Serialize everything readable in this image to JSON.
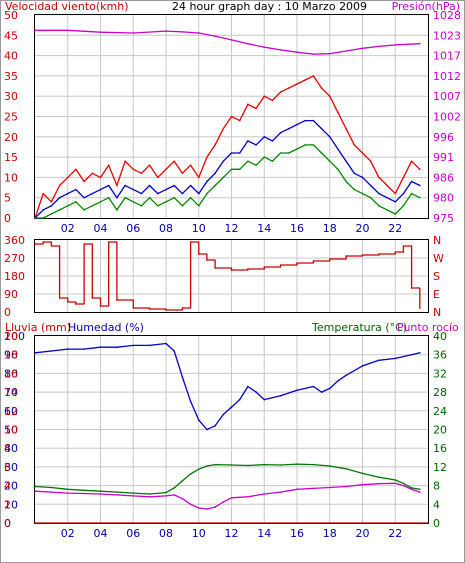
{
  "chart_data": [
    {
      "type": "line",
      "title": "24 hour graph day : 10 Marzo 2009",
      "left_label": "Velocidad viento(kmh)",
      "right_label": "Presión(hPa)",
      "x_ticks": [
        "02",
        "04",
        "06",
        "08",
        "10",
        "12",
        "14",
        "16",
        "18",
        "20",
        "22"
      ],
      "x_tick_hours": [
        2,
        4,
        6,
        8,
        10,
        12,
        14,
        16,
        18,
        20,
        22
      ],
      "x_range_hours": [
        0,
        24
      ],
      "y_left_ticks": [
        "0",
        "5",
        "10",
        "15",
        "20",
        "25",
        "30",
        "35",
        "40",
        "45",
        "50"
      ],
      "y_left_range": [
        0,
        50
      ],
      "y_right_ticks": [
        "975",
        "980",
        "986",
        "991",
        "996",
        "1002",
        "1007",
        "1012",
        "1017",
        "1023",
        "1028"
      ],
      "y_right_range": [
        975,
        1028
      ],
      "grid": true,
      "colors": {
        "gust": "#ee0000",
        "average": "#0000cc",
        "minimum": "#008800",
        "pressure": "#cc00cc"
      },
      "series": [
        {
          "key": "pressure",
          "axis": "right",
          "x": [
            0,
            2,
            4,
            6,
            8,
            9,
            10,
            11,
            12,
            13,
            14,
            15,
            16,
            17,
            18,
            19,
            20,
            21,
            22,
            23.5
          ],
          "values": [
            1024,
            1024,
            1023.5,
            1023.3,
            1023.8,
            1023.6,
            1023.3,
            1022.5,
            1021.5,
            1020.5,
            1019.6,
            1018.9,
            1018.3,
            1017.8,
            1017.9,
            1018.6,
            1019.3,
            1019.8,
            1020.2,
            1020.5
          ]
        },
        {
          "key": "gust",
          "axis": "left",
          "x": [
            0,
            0.5,
            1,
            1.5,
            2,
            2.5,
            3,
            3.5,
            4,
            4.5,
            5,
            5.5,
            6,
            6.5,
            7,
            7.5,
            8,
            8.5,
            9,
            9.5,
            10,
            10.5,
            11,
            11.5,
            12,
            12.5,
            13,
            13.5,
            14,
            14.5,
            15,
            15.5,
            16,
            16.5,
            17,
            17.5,
            18,
            18.5,
            19,
            19.5,
            20,
            20.5,
            21,
            21.5,
            22,
            22.5,
            23,
            23.5
          ],
          "values": [
            0,
            6,
            4,
            8,
            10,
            12,
            9,
            11,
            10,
            13,
            8,
            14,
            12,
            11,
            13,
            10,
            12,
            14,
            11,
            13,
            10,
            15,
            18,
            22,
            25,
            24,
            28,
            27,
            30,
            29,
            31,
            32,
            33,
            34,
            35,
            32,
            30,
            26,
            22,
            18,
            16,
            14,
            10,
            8,
            6,
            10,
            14,
            12
          ]
        },
        {
          "key": "average",
          "axis": "left",
          "x": [
            0,
            0.5,
            1,
            1.5,
            2,
            2.5,
            3,
            3.5,
            4,
            4.5,
            5,
            5.5,
            6,
            6.5,
            7,
            7.5,
            8,
            8.5,
            9,
            9.5,
            10,
            10.5,
            11,
            11.5,
            12,
            12.5,
            13,
            13.5,
            14,
            14.5,
            15,
            15.5,
            16,
            16.5,
            17,
            17.5,
            18,
            18.5,
            19,
            19.5,
            20,
            20.5,
            21,
            21.5,
            22,
            22.5,
            23,
            23.5
          ],
          "values": [
            0,
            2,
            3,
            5,
            6,
            7,
            5,
            6,
            7,
            8,
            5,
            8,
            7,
            6,
            8,
            6,
            7,
            8,
            6,
            8,
            6,
            9,
            11,
            14,
            16,
            16,
            19,
            18,
            20,
            19,
            21,
            22,
            23,
            24,
            24,
            22,
            20,
            17,
            14,
            11,
            10,
            8,
            6,
            5,
            4,
            6,
            9,
            8
          ]
        },
        {
          "key": "minimum",
          "axis": "left",
          "x": [
            0,
            0.5,
            1,
            1.5,
            2,
            2.5,
            3,
            3.5,
            4,
            4.5,
            5,
            5.5,
            6,
            6.5,
            7,
            7.5,
            8,
            8.5,
            9,
            9.5,
            10,
            10.5,
            11,
            11.5,
            12,
            12.5,
            13,
            13.5,
            14,
            14.5,
            15,
            15.5,
            16,
            16.5,
            17,
            17.5,
            18,
            18.5,
            19,
            19.5,
            20,
            20.5,
            21,
            21.5,
            22,
            22.5,
            23,
            23.5
          ],
          "values": [
            0,
            0,
            1,
            2,
            3,
            4,
            2,
            3,
            4,
            5,
            2,
            5,
            4,
            3,
            5,
            3,
            4,
            5,
            3,
            5,
            3,
            6,
            8,
            10,
            12,
            12,
            14,
            13,
            15,
            14,
            16,
            16,
            17,
            18,
            18,
            16,
            14,
            12,
            9,
            7,
            6,
            5,
            3,
            2,
            1,
            3,
            6,
            5
          ]
        }
      ]
    },
    {
      "type": "line",
      "x_ticks": [],
      "x_range_hours": [
        0,
        24
      ],
      "y_left_ticks": [
        "0",
        "90",
        "180",
        "270",
        "360"
      ],
      "y_left_range": [
        0,
        360
      ],
      "y_right_ticks": [
        "N",
        "E",
        "S",
        "W",
        "N"
      ],
      "grid": true,
      "colors": {
        "direction": "#cc0000"
      },
      "series": [
        {
          "key": "direction",
          "axis": "left",
          "x": [
            0,
            0.5,
            1,
            1.5,
            2,
            2.5,
            3,
            3.5,
            4,
            4.5,
            5,
            6,
            7,
            8,
            9,
            9.5,
            10,
            10.5,
            11,
            12,
            13,
            14,
            15,
            16,
            17,
            18,
            19,
            20,
            21,
            22,
            22.5,
            23,
            23.5
          ],
          "values": [
            340,
            350,
            330,
            70,
            50,
            40,
            340,
            70,
            30,
            350,
            60,
            20,
            15,
            10,
            20,
            350,
            290,
            260,
            220,
            210,
            215,
            225,
            235,
            245,
            255,
            265,
            280,
            285,
            290,
            300,
            330,
            120,
            20
          ]
        }
      ]
    },
    {
      "type": "line",
      "left_label": "Lluvia (mm)",
      "left_label_2": "Humedad (%)",
      "right_label": "Temperatura (°C)",
      "right_label_2": "Punto rocío",
      "x_ticks": [
        "02",
        "04",
        "06",
        "08",
        "10",
        "12",
        "14",
        "16",
        "18",
        "20",
        "22"
      ],
      "x_tick_hours": [
        2,
        4,
        6,
        8,
        10,
        12,
        14,
        16,
        18,
        20,
        22
      ],
      "x_range_hours": [
        0,
        24
      ],
      "y_left_ticks": [
        "0",
        "10",
        "20",
        "30",
        "40",
        "50",
        "60",
        "70",
        "80",
        "90",
        "100"
      ],
      "y_left_range": [
        0,
        100
      ],
      "y_left_ticks_2": [
        "0",
        "2",
        "4",
        "6",
        "8",
        "10",
        "12",
        "14",
        "16",
        "18",
        "20"
      ],
      "y_right_ticks": [
        "0",
        "4",
        "8",
        "12",
        "16",
        "20",
        "24",
        "28",
        "32",
        "36",
        "40"
      ],
      "y_right_range": [
        0,
        40
      ],
      "grid": true,
      "colors": {
        "humidity": "#0000cc",
        "temperature": "#007700",
        "dew_point": "#cc00cc",
        "rain": "#cc0000"
      },
      "series": [
        {
          "key": "humidity",
          "axis": "left",
          "x": [
            0,
            1,
            2,
            3,
            4,
            5,
            6,
            7,
            8,
            8.5,
            9,
            9.5,
            10,
            10.5,
            11,
            11.5,
            12,
            12.5,
            13,
            13.5,
            14,
            15,
            16,
            17,
            17.5,
            18,
            18.5,
            19,
            20,
            21,
            22,
            23,
            23.5
          ],
          "values": [
            91,
            92,
            93,
            93,
            94,
            94,
            95,
            95,
            96,
            92,
            78,
            65,
            55,
            50,
            52,
            58,
            62,
            66,
            73,
            70,
            66,
            68,
            71,
            73,
            70,
            72,
            76,
            79,
            84,
            87,
            88,
            90,
            91
          ]
        },
        {
          "key": "temperature",
          "axis": "right",
          "x": [
            0,
            1,
            2,
            3,
            4,
            5,
            6,
            7,
            8,
            8.5,
            9,
            9.5,
            10,
            10.5,
            11,
            12,
            13,
            14,
            15,
            16,
            17,
            18,
            19,
            20,
            21,
            22,
            22.5,
            23,
            23.5
          ],
          "values": [
            7.8,
            7.6,
            7.2,
            7,
            6.8,
            6.6,
            6.4,
            6.2,
            6.5,
            7.5,
            9,
            10.5,
            11.5,
            12.2,
            12.5,
            12.4,
            12.3,
            12.5,
            12.4,
            12.6,
            12.5,
            12.2,
            11.6,
            10.6,
            9.8,
            9.2,
            8.5,
            7.5,
            7.2
          ]
        },
        {
          "key": "dew_point",
          "axis": "right",
          "x": [
            0,
            1,
            2,
            3,
            4,
            5,
            6,
            7,
            8,
            8.5,
            9,
            9.5,
            10,
            10.5,
            11,
            11.5,
            12,
            13,
            14,
            15,
            16,
            17,
            18,
            19,
            20,
            21,
            22,
            22.5,
            23,
            23.5
          ],
          "values": [
            6.8,
            6.6,
            6.4,
            6.3,
            6.2,
            6,
            5.8,
            5.6,
            5.8,
            6,
            5.2,
            4,
            3.2,
            3,
            3.4,
            4.5,
            5.4,
            5.6,
            6.2,
            6.6,
            7.2,
            7.4,
            7.6,
            7.8,
            8.2,
            8.4,
            8.5,
            8,
            7.2,
            6.6
          ]
        },
        {
          "key": "rain",
          "axis": "left",
          "x": [
            0,
            24
          ],
          "values": [
            0,
            0
          ]
        }
      ]
    }
  ]
}
